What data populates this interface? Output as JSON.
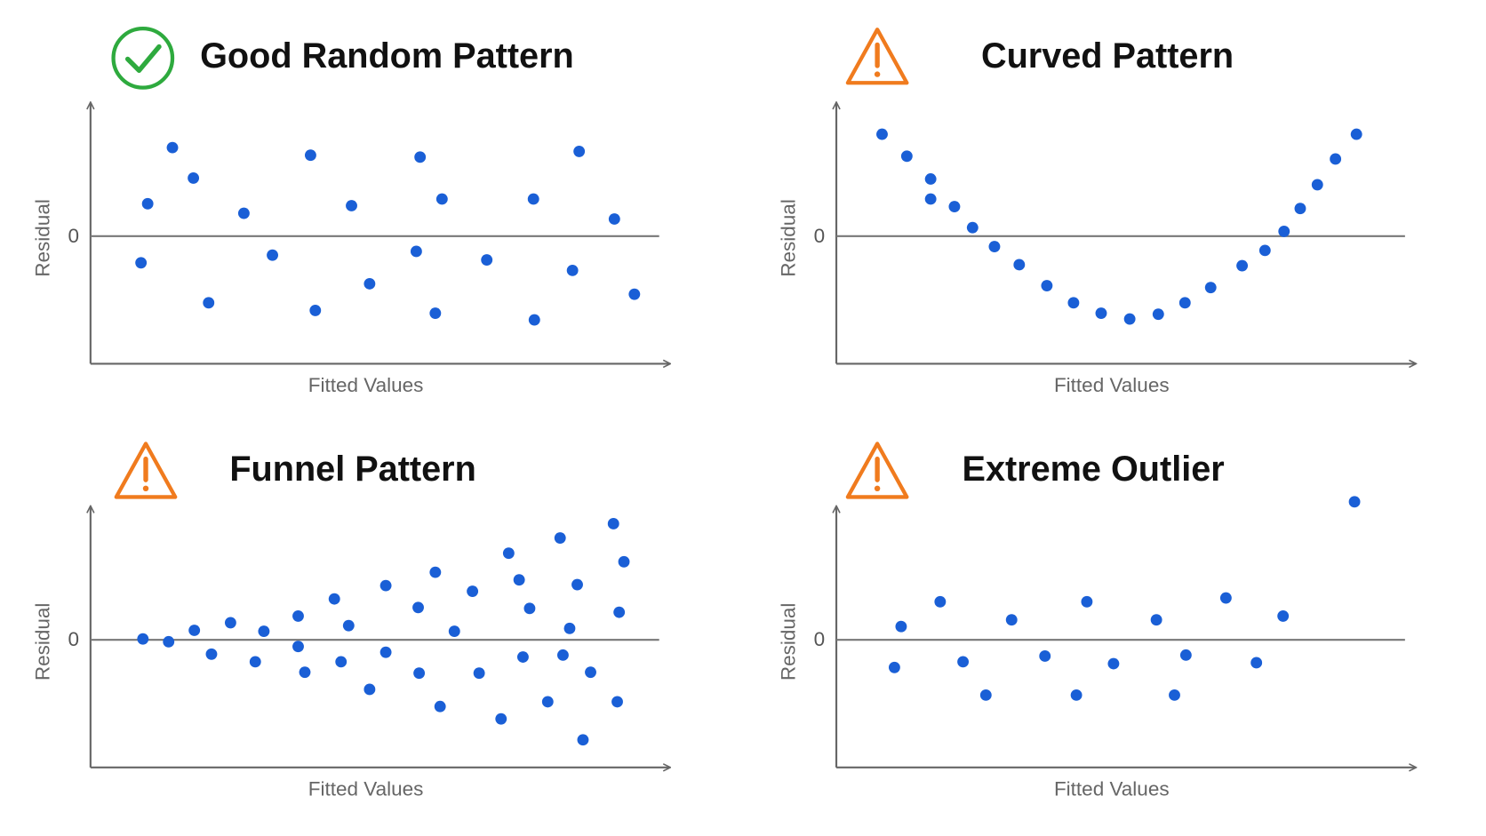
{
  "chart_data": [
    {
      "type": "scatter",
      "title": "Good Random Pattern",
      "xlabel": "Fitted Values",
      "ylabel": "Residual",
      "color": "#1a5fd6",
      "xlim": [
        0,
        60.8
      ],
      "ylim": [
        -13.4,
        13.4
      ],
      "yticks": [
        0
      ],
      "x": [
        5.3,
        6.0,
        8.6,
        10.8,
        12.4,
        16.1,
        19.1,
        23.1,
        23.6,
        27.4,
        29.3,
        34.2,
        34.6,
        36.2,
        36.9,
        41.6,
        46.5,
        46.6,
        50.6,
        51.3,
        55.0,
        57.1
      ],
      "y": [
        -2.8,
        3.4,
        9.3,
        6.1,
        -7.0,
        2.4,
        -2.0,
        8.5,
        -7.8,
        3.2,
        -5.0,
        -1.6,
        8.3,
        -8.1,
        3.9,
        -2.5,
        3.9,
        -8.8,
        -3.6,
        8.9,
        1.8,
        -6.1
      ]
    },
    {
      "type": "scatter",
      "title": "Curved Pattern",
      "xlabel": "Fitted Values",
      "ylabel": "Residual",
      "color": "#1a5fd6",
      "xlim": [
        0,
        60.8
      ],
      "ylim": [
        -13.4,
        13.4
      ],
      "yticks": [
        0
      ],
      "x": [
        4.8,
        7.4,
        9.9,
        9.9,
        12.4,
        14.3,
        16.6,
        19.2,
        22.1,
        24.9,
        27.8,
        30.8,
        33.8,
        36.6,
        39.3,
        42.6,
        45.0,
        47.0,
        48.7,
        50.5,
        52.4,
        54.6
      ],
      "y": [
        10.7,
        8.4,
        6.0,
        3.9,
        3.1,
        0.9,
        -1.1,
        -3.0,
        -5.2,
        -7.0,
        -8.1,
        -8.7,
        -8.2,
        -7.0,
        -5.4,
        -3.1,
        -1.5,
        0.5,
        2.9,
        5.4,
        8.1,
        10.7
      ]
    },
    {
      "type": "scatter",
      "title": "Funnel Pattern",
      "xlabel": "Fitted Values",
      "ylabel": "Residual",
      "color": "#1a5fd6",
      "xlim": [
        0,
        60.8
      ],
      "ylim": [
        -13.4,
        13.4
      ],
      "yticks": [
        0
      ],
      "x": [
        5.5,
        8.2,
        10.9,
        12.7,
        14.7,
        17.3,
        18.2,
        21.8,
        21.8,
        22.5,
        25.6,
        26.3,
        27.1,
        29.3,
        31.0,
        31.0,
        34.4,
        34.5,
        36.2,
        36.7,
        38.2,
        40.1,
        40.8,
        43.1,
        43.9,
        45.0,
        45.4,
        46.1,
        48.0,
        49.3,
        49.6,
        50.3,
        51.1,
        51.7,
        52.5,
        54.9,
        55.3,
        55.5,
        56.0
      ],
      "y": [
        0.1,
        -0.2,
        1.0,
        -1.5,
        1.8,
        -2.3,
        0.9,
        2.5,
        -0.7,
        -3.4,
        4.3,
        -2.3,
        1.5,
        -5.2,
        5.7,
        -1.3,
        3.4,
        -3.5,
        7.1,
        -7.0,
        0.9,
        5.1,
        -3.5,
        -8.3,
        9.1,
        6.3,
        -1.8,
        3.3,
        -6.5,
        10.7,
        -1.6,
        1.2,
        5.8,
        -10.5,
        -3.4,
        12.2,
        -6.5,
        2.9,
        8.2
      ]
    },
    {
      "type": "scatter",
      "title": "Extreme Outlier",
      "xlabel": "Fitted Values",
      "ylabel": "Residual",
      "color": "#1a5fd6",
      "xlim": [
        0,
        60.8
      ],
      "ylim": [
        -13.4,
        13.4
      ],
      "yticks": [
        0
      ],
      "x": [
        6.1,
        6.8,
        10.9,
        13.3,
        15.7,
        18.4,
        21.9,
        25.2,
        26.3,
        29.1,
        33.6,
        35.5,
        36.7,
        40.9,
        44.1,
        46.9,
        54.4
      ],
      "y": [
        -2.9,
        1.4,
        4.0,
        -2.3,
        -5.8,
        2.1,
        -1.7,
        -5.8,
        4.0,
        -2.5,
        2.1,
        -5.8,
        -1.6,
        4.4,
        -2.4,
        2.5,
        14.5
      ]
    }
  ]
}
